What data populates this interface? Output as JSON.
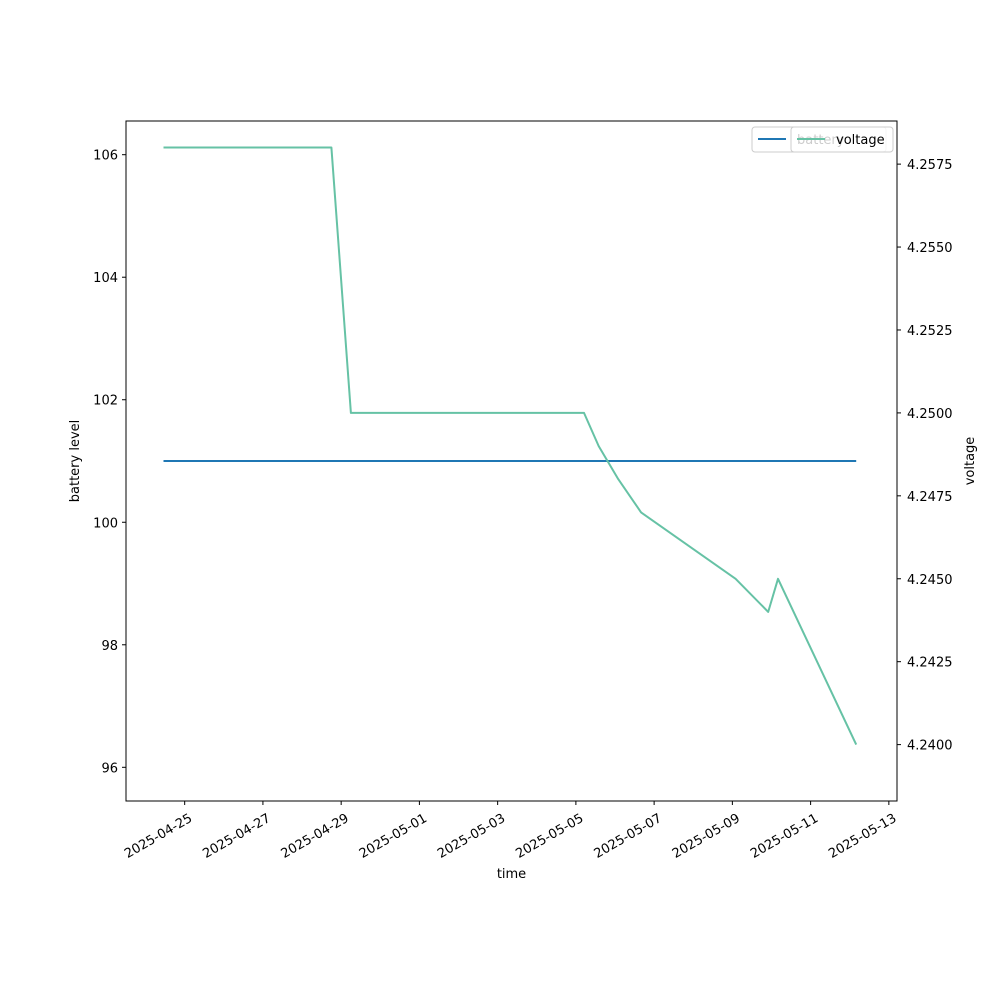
{
  "chart_data": {
    "type": "line",
    "xlabel": "time",
    "x_dates": [
      "2025-04-25",
      "2025-04-27",
      "2025-04-29",
      "2025-05-01",
      "2025-05-03",
      "2025-05-05",
      "2025-05-07",
      "2025-05-09",
      "2025-05-11",
      "2025-05-13"
    ],
    "xlim": [
      "2025-04-23T12:00",
      "2025-05-13T05:00"
    ],
    "left_axis": {
      "label": "battery level",
      "ylim": [
        95.45,
        106.55
      ],
      "ticks": [
        "96",
        "98",
        "100",
        "102",
        "104",
        "106"
      ]
    },
    "right_axis": {
      "label": "voltage",
      "ylim": [
        4.2383,
        4.2588
      ],
      "ticks": [
        "4.2400",
        "4.2425",
        "4.2450",
        "4.2475",
        "4.2500",
        "4.2525",
        "4.2550",
        "4.2575"
      ]
    },
    "series": [
      {
        "name": "battery",
        "axis": "left",
        "color": "#1f77b4",
        "points": [
          {
            "x": "2025-04-24T11:00",
            "y": 101
          },
          {
            "x": "2025-05-12T04:00",
            "y": 101
          }
        ]
      },
      {
        "name": "voltage",
        "axis": "right",
        "color": "#66c2a5",
        "points": [
          {
            "x": "2025-04-24T11:00",
            "y": 4.258
          },
          {
            "x": "2025-04-28T18:00",
            "y": 4.258
          },
          {
            "x": "2025-04-29T06:00",
            "y": 4.25
          },
          {
            "x": "2025-05-05T05:00",
            "y": 4.25
          },
          {
            "x": "2025-05-05T14:00",
            "y": 4.249
          },
          {
            "x": "2025-05-06T02:00",
            "y": 4.248
          },
          {
            "x": "2025-05-06T16:00",
            "y": 4.247
          },
          {
            "x": "2025-05-09T02:00",
            "y": 4.245
          },
          {
            "x": "2025-05-09T22:00",
            "y": 4.244
          },
          {
            "x": "2025-05-10T04:00",
            "y": 4.245
          },
          {
            "x": "2025-05-12T04:00",
            "y": 4.24
          }
        ]
      }
    ],
    "legends": {
      "left_entries": [
        "battery"
      ],
      "right_entries": [
        "voltage"
      ],
      "placement": "upper right (overlapping)"
    }
  }
}
